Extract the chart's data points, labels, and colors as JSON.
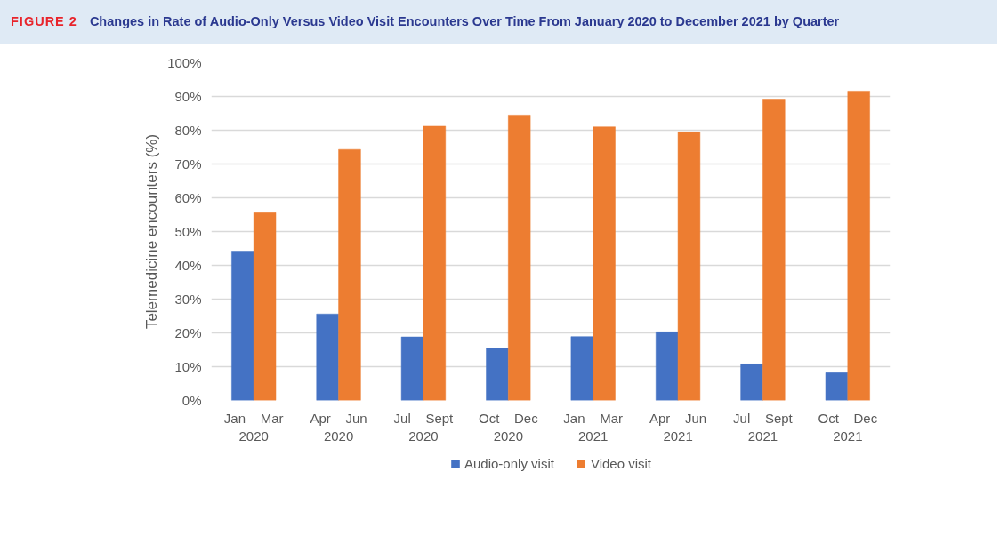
{
  "chart_data": {
    "type": "bar",
    "title": "Changes in Rate of Audio-Only Versus Video Visit Encounters Over Time From January 2020 to December 2021 by Quarter",
    "annotations": [
      "FIGURE 2"
    ],
    "ylabel": "Telemedicine encounters (%)",
    "categories": [
      "Jan – Mar 2020",
      "Apr – Jun 2020",
      "Jul – Sept 2020",
      "Oct – Dec 2020",
      "Jan – Mar 2021",
      "Apr – Jun 2021",
      "Jul – Sept 2021",
      "Oct – Dec 2021"
    ],
    "series": [
      {
        "name": "Audio-only visit",
        "color": "#4472c4",
        "values": [
          44.2,
          25.6,
          18.8,
          15.4,
          18.9,
          20.3,
          10.8,
          8.2
        ]
      },
      {
        "name": "Video visit",
        "color": "#ed7d31",
        "values": [
          55.6,
          74.3,
          81.2,
          84.5,
          81.0,
          79.5,
          89.2,
          91.6
        ]
      }
    ],
    "ylim": [
      0,
      100
    ],
    "yticks": [
      {
        "value": 0,
        "label": "0%"
      },
      {
        "value": 10,
        "label": "10%"
      },
      {
        "value": 20,
        "label": "20%"
      },
      {
        "value": 30,
        "label": "30%"
      },
      {
        "value": 40,
        "label": "40%"
      },
      {
        "value": 50,
        "label": "50%"
      },
      {
        "value": 60,
        "label": "60%"
      },
      {
        "value": 70,
        "label": "70%"
      },
      {
        "value": 80,
        "label": "80%"
      },
      {
        "value": 90,
        "label": "90%"
      },
      {
        "value": 100,
        "label": "100%"
      }
    ],
    "grid": "y",
    "legend": "bottom"
  }
}
